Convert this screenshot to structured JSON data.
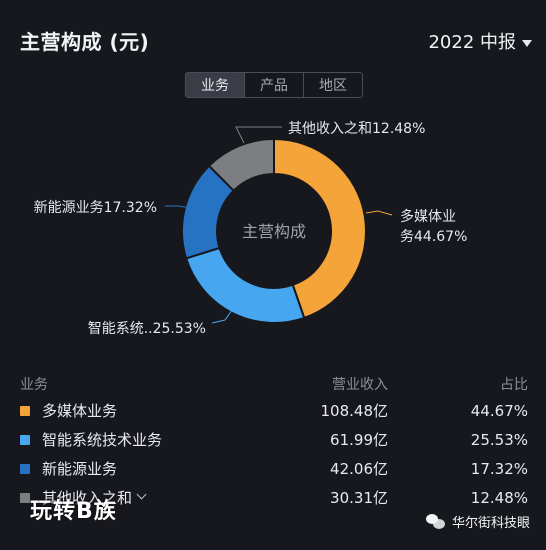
{
  "header": {
    "title": "主营构成 (元)",
    "period": "2022 中报"
  },
  "tabs": [
    {
      "label": "业务",
      "active": true
    },
    {
      "label": "产品",
      "active": false
    },
    {
      "label": "地区",
      "active": false
    }
  ],
  "chart_data": {
    "type": "pie",
    "center_label": "主营构成",
    "slices": [
      {
        "label": "多媒体业务",
        "chart_label": "多媒体业务44.67%",
        "value": 44.67,
        "color": "#f5a43a"
      },
      {
        "label": "智能系统技术业务",
        "chart_label": "智能系统..25.53%",
        "value": 25.53,
        "color": "#46a7f0"
      },
      {
        "label": "新能源业务",
        "chart_label": "新能源业务17.32%",
        "value": 17.32,
        "color": "#2673c4"
      },
      {
        "label": "其他收入之和",
        "chart_label": "其他收入之和12.48%",
        "value": 12.48,
        "color": "#7d7e82"
      }
    ]
  },
  "table": {
    "headers": {
      "name": "业务",
      "revenue": "营业收入",
      "share": "占比"
    },
    "rows": [
      {
        "name": "多媒体业务",
        "revenue": "108.48亿",
        "share": "44.67%",
        "color": "#f5a43a"
      },
      {
        "name": "智能系统技术业务",
        "revenue": "61.99亿",
        "share": "25.53%",
        "color": "#46a7f0"
      },
      {
        "name": "新能源业务",
        "revenue": "42.06亿",
        "share": "17.32%",
        "color": "#2673c4"
      },
      {
        "name": "其他收入之和",
        "revenue": "30.31亿",
        "share": "12.48%",
        "color": "#7d7e82"
      }
    ]
  },
  "watermark": "玩转B族",
  "wechat_account": "华尔街科技眼"
}
